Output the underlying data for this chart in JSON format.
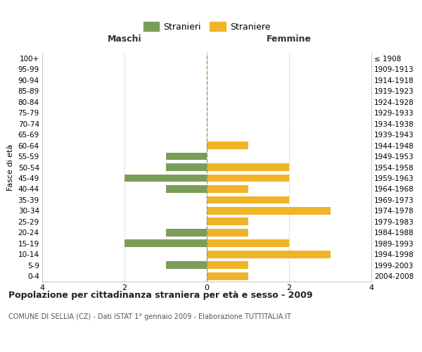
{
  "age_groups": [
    "0-4",
    "5-9",
    "10-14",
    "15-19",
    "20-24",
    "25-29",
    "30-34",
    "35-39",
    "40-44",
    "45-49",
    "50-54",
    "55-59",
    "60-64",
    "65-69",
    "70-74",
    "75-79",
    "80-84",
    "85-89",
    "90-94",
    "95-99",
    "100+"
  ],
  "birth_years": [
    "2004-2008",
    "1999-2003",
    "1994-1998",
    "1989-1993",
    "1984-1988",
    "1979-1983",
    "1974-1978",
    "1969-1973",
    "1964-1968",
    "1959-1963",
    "1954-1958",
    "1949-1953",
    "1944-1948",
    "1939-1943",
    "1934-1938",
    "1929-1933",
    "1924-1928",
    "1919-1923",
    "1914-1918",
    "1909-1913",
    "≤ 1908"
  ],
  "males": [
    0,
    1,
    0,
    2,
    1,
    0,
    0,
    0,
    1,
    2,
    1,
    1,
    0,
    0,
    0,
    0,
    0,
    0,
    0,
    0,
    0
  ],
  "females": [
    1,
    1,
    3,
    2,
    1,
    1,
    3,
    2,
    1,
    2,
    2,
    0,
    1,
    0,
    0,
    0,
    0,
    0,
    0,
    0,
    0
  ],
  "male_color": "#7a9e5a",
  "female_color": "#f0b429",
  "title_main": "Popolazione per cittadinanza straniera per età e sesso - 2009",
  "title_sub": "COMUNE DI SELLIA (CZ) - Dati ISTAT 1° gennaio 2009 - Elaborazione TUTTITALIA.IT",
  "legend_male": "Stranieri",
  "legend_female": "Straniere",
  "xlabel_left": "Maschi",
  "xlabel_right": "Femmine",
  "ylabel_left": "Fasce di età",
  "xlim": 4,
  "bg_color": "#ffffff",
  "grid_color": "#cccccc",
  "centerline_color": "#999966"
}
